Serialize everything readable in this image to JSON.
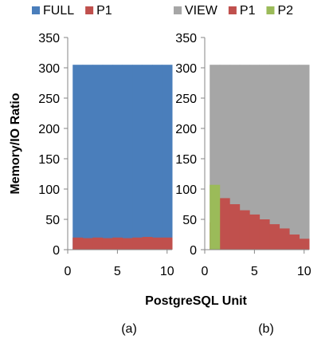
{
  "chart_data": [
    {
      "type": "area",
      "panel_label": "(a)",
      "xlabel": "PostgreSQL Unit",
      "ylabel": "Memory/IO Ratio",
      "xlim": [
        0,
        10.5
      ],
      "ylim": [
        0,
        350
      ],
      "xticks": [
        "0",
        "5",
        "10"
      ],
      "yticks": [
        "0",
        "50",
        "100",
        "150",
        "200",
        "250",
        "300",
        "350"
      ],
      "grid": false,
      "legend_position": "top",
      "x": [
        1,
        2,
        3,
        4,
        5,
        6,
        7,
        8,
        9,
        10
      ],
      "series": [
        {
          "name": "FULL",
          "color": "#4a7ebb",
          "values": [
            305,
            305,
            305,
            305,
            305,
            305,
            305,
            305,
            305,
            305
          ]
        },
        {
          "name": "P1",
          "color": "#c0504d",
          "values": [
            20,
            19,
            20,
            19,
            20,
            19,
            20,
            21,
            20,
            20
          ]
        }
      ]
    },
    {
      "type": "area",
      "panel_label": "(b)",
      "xlabel": "PostgreSQL Unit",
      "ylabel": "",
      "xlim": [
        0,
        10.5
      ],
      "ylim": [
        0,
        350
      ],
      "xticks": [
        "0",
        "5",
        "10"
      ],
      "yticks": [
        "0",
        "50",
        "100",
        "150",
        "200",
        "250",
        "300",
        "350"
      ],
      "grid": false,
      "legend_position": "top",
      "x": [
        1,
        2,
        3,
        4,
        5,
        6,
        7,
        8,
        9,
        10
      ],
      "series": [
        {
          "name": "VIEW",
          "color": "#a6a6a6",
          "values": [
            305,
            305,
            305,
            305,
            305,
            305,
            305,
            305,
            305,
            305
          ]
        },
        {
          "name": "P1",
          "color": "#c0504d",
          "values": [
            45,
            85,
            75,
            65,
            58,
            50,
            42,
            35,
            25,
            18
          ]
        },
        {
          "name": "P2",
          "color": "#9bbb59",
          "values": [
            107,
            0,
            0,
            0,
            0,
            0,
            0,
            0,
            0,
            0
          ]
        }
      ]
    }
  ]
}
